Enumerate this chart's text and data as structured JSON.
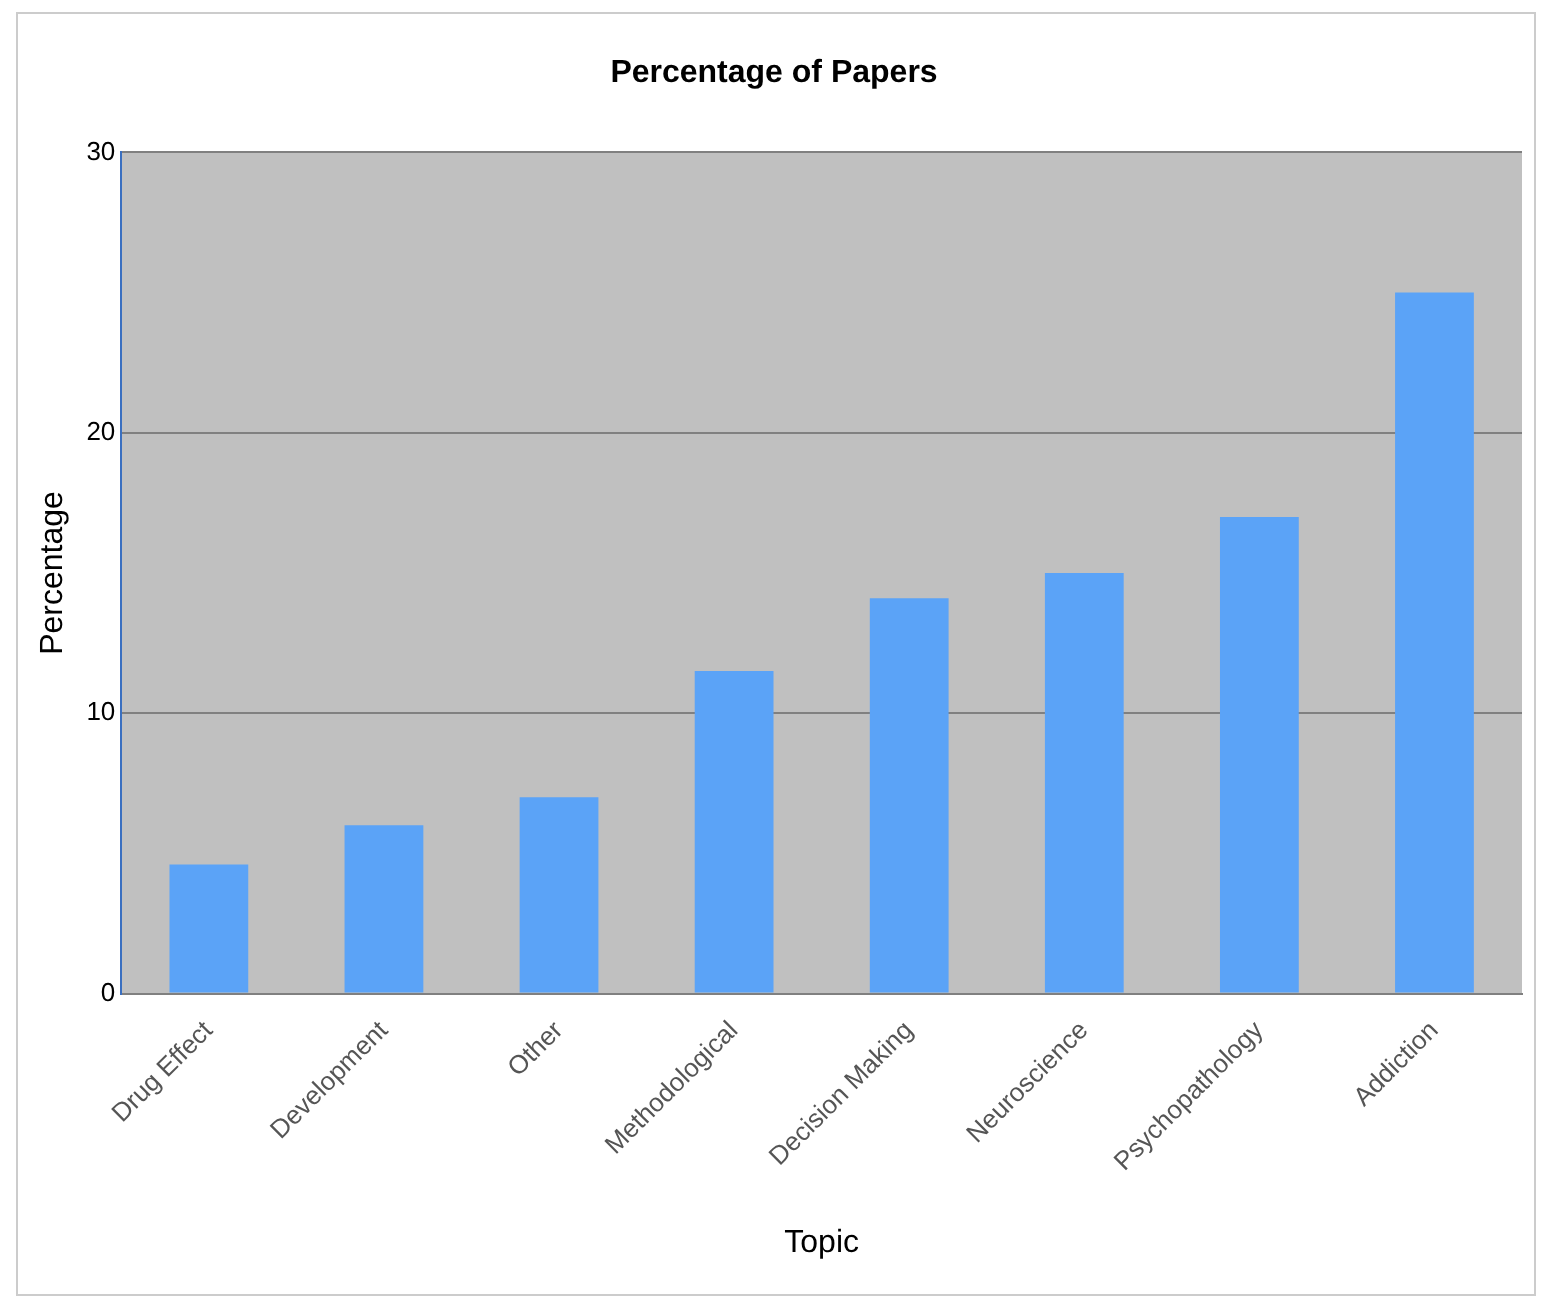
{
  "chart_data": {
    "type": "bar",
    "title": "Percentage of Papers",
    "xlabel": "Topic",
    "ylabel": "Percentage",
    "categories": [
      "Drug Effect",
      "Development",
      "Other",
      "Methodological",
      "Decision Making",
      "Neuroscience",
      "Psychopathology",
      "Addiction"
    ],
    "values": [
      4.6,
      6.0,
      7.0,
      11.5,
      14.1,
      15.0,
      17.0,
      25.0
    ],
    "color": "#5ba3f7",
    "ylim": [
      0,
      30
    ],
    "yticks": [
      0,
      10,
      20,
      30
    ],
    "grid": "y",
    "legend": false
  }
}
